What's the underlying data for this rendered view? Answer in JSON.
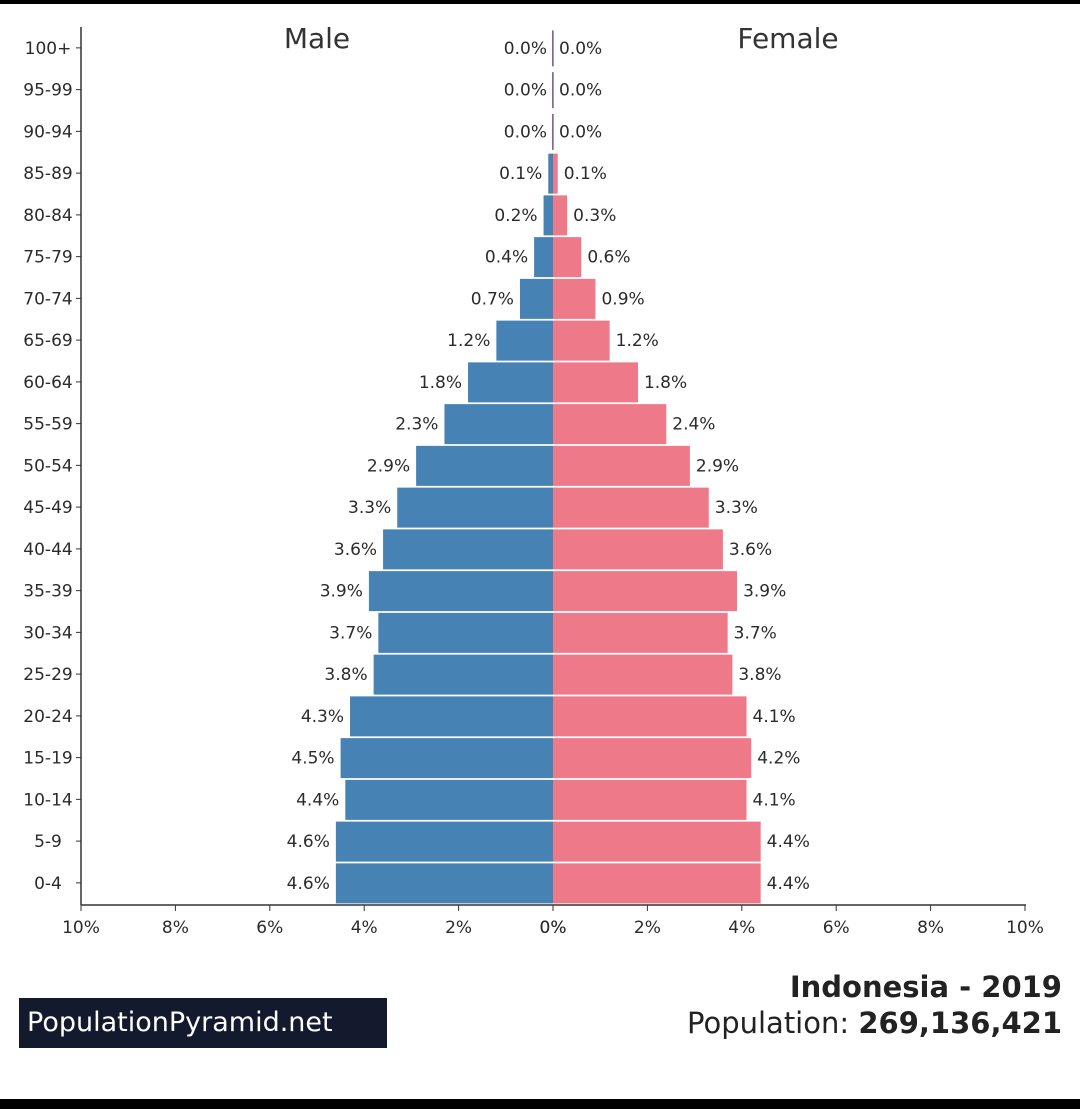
{
  "chart_data": {
    "type": "bar",
    "orientation": "horizontal-pyramid",
    "title": "Indonesia - 2019",
    "population_label": "Population:",
    "population_value": "269,136,421",
    "brand": "PopulationPyramid.net",
    "left_label": "Male",
    "right_label": "Female",
    "categories": [
      "100+",
      "95-99",
      "90-94",
      "85-89",
      "80-84",
      "75-79",
      "70-74",
      "65-69",
      "60-64",
      "55-59",
      "50-54",
      "45-49",
      "40-44",
      "35-39",
      "30-34",
      "25-29",
      "20-24",
      "15-19",
      "10-14",
      "5-9",
      "0-4"
    ],
    "series": [
      {
        "name": "Male",
        "color": "#4682b4",
        "values": [
          0.0,
          0.0,
          0.0,
          0.1,
          0.2,
          0.4,
          0.7,
          1.2,
          1.8,
          2.3,
          2.9,
          3.3,
          3.6,
          3.9,
          3.7,
          3.8,
          4.3,
          4.5,
          4.4,
          4.6,
          4.6
        ],
        "labels": [
          "0.0%",
          "0.0%",
          "0.0%",
          "0.1%",
          "0.2%",
          "0.4%",
          "0.7%",
          "1.2%",
          "1.8%",
          "2.3%",
          "2.9%",
          "3.3%",
          "3.6%",
          "3.9%",
          "3.7%",
          "3.8%",
          "4.3%",
          "4.5%",
          "4.4%",
          "4.6%",
          "4.6%"
        ]
      },
      {
        "name": "Female",
        "color": "#ee7989",
        "values": [
          0.0,
          0.0,
          0.0,
          0.1,
          0.3,
          0.6,
          0.9,
          1.2,
          1.8,
          2.4,
          2.9,
          3.3,
          3.6,
          3.9,
          3.7,
          3.8,
          4.1,
          4.2,
          4.1,
          4.4,
          4.4
        ],
        "labels": [
          "0.0%",
          "0.0%",
          "0.0%",
          "0.1%",
          "0.3%",
          "0.6%",
          "0.9%",
          "1.2%",
          "1.8%",
          "2.4%",
          "2.9%",
          "3.3%",
          "3.6%",
          "3.9%",
          "3.7%",
          "3.8%",
          "4.1%",
          "4.2%",
          "4.1%",
          "4.4%",
          "4.4%"
        ]
      }
    ],
    "xlim": [
      -10,
      10
    ],
    "x_ticks": [
      "10%",
      "8%",
      "6%",
      "4%",
      "2%",
      "0%",
      "0%",
      "2%",
      "4%",
      "6%",
      "8%",
      "10%"
    ],
    "grid": false
  }
}
